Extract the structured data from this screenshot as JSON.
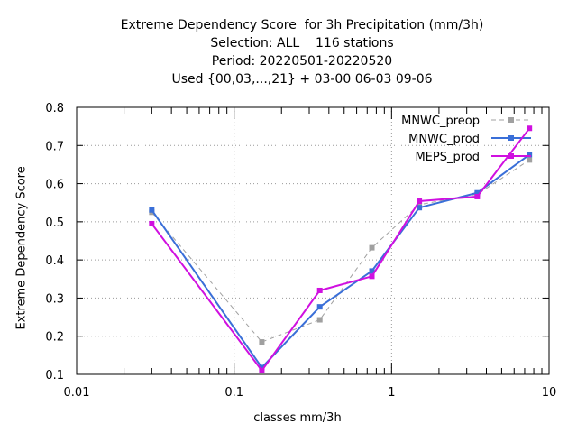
{
  "titles": [
    "Extreme Dependency Score  for 3h Precipitation (mm/3h)",
    "Selection: ALL    116 stations",
    "Period: 20220501-20220520",
    "Used {00,03,...,21} + 03-00 06-03 09-06"
  ],
  "chart_data": {
    "type": "line",
    "xlabel": "classes mm/3h",
    "ylabel": "Extreme Dependency Score",
    "xscale": "log",
    "xlim": [
      0.01,
      10
    ],
    "ylim": [
      0.1,
      0.8
    ],
    "xticks": [
      "0.01",
      "0.1",
      "1",
      "10"
    ],
    "yticks": [
      "0.1",
      "0.2",
      "0.3",
      "0.4",
      "0.5",
      "0.6",
      "0.7",
      "0.8"
    ],
    "grid": "major dotted",
    "legend_position": "top-right",
    "x": [
      0.03,
      0.15,
      0.35,
      0.75,
      1.5,
      3.5,
      7.5
    ],
    "series": [
      {
        "name": "MNWC_preop",
        "color": "#a0a0a0",
        "dashed": true,
        "values": [
          0.525,
          0.185,
          0.243,
          0.432,
          0.545,
          0.572,
          0.662
        ]
      },
      {
        "name": "MNWC_prod",
        "color": "#3a6fd8",
        "dashed": false,
        "values": [
          0.531,
          0.118,
          0.277,
          0.371,
          0.537,
          0.576,
          0.676
        ]
      },
      {
        "name": "MEPS_prod",
        "color": "#d010e0",
        "dashed": false,
        "values": [
          0.495,
          0.11,
          0.32,
          0.357,
          0.554,
          0.566,
          0.745
        ]
      }
    ]
  }
}
